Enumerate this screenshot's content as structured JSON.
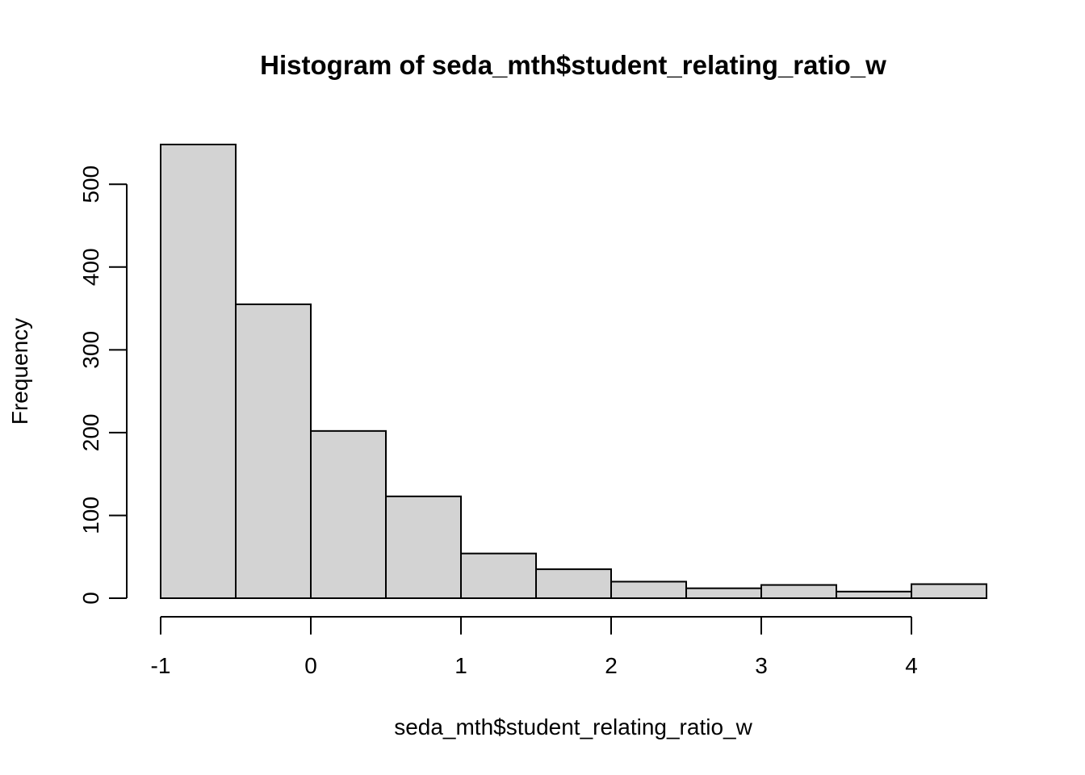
{
  "chart_data": {
    "type": "bar",
    "title": "Histogram of seda_mth$student_relating_ratio_w",
    "xlabel": "seda_mth$student_relating_ratio_w",
    "ylabel": "Frequency",
    "bin_edges": [
      -1,
      -0.5,
      0,
      0.5,
      1,
      1.5,
      2,
      2.5,
      3,
      3.5,
      4,
      4.5
    ],
    "values": [
      548,
      355,
      202,
      123,
      54,
      35,
      20,
      12,
      16,
      8,
      17
    ],
    "xlim": [
      -1,
      4.5
    ],
    "ylim": [
      0,
      548
    ],
    "x_ticks": [
      -1,
      0,
      1,
      2,
      3,
      4
    ],
    "x_tick_labels": [
      "-1",
      "0",
      "1",
      "2",
      "3",
      "4"
    ],
    "y_ticks": [
      0,
      100,
      200,
      300,
      400,
      500
    ],
    "y_tick_labels": [
      "0",
      "100",
      "200",
      "300",
      "400",
      "500"
    ],
    "colors": {
      "bar_fill": "#d3d3d3",
      "bar_stroke": "#000000"
    },
    "grid": false
  }
}
